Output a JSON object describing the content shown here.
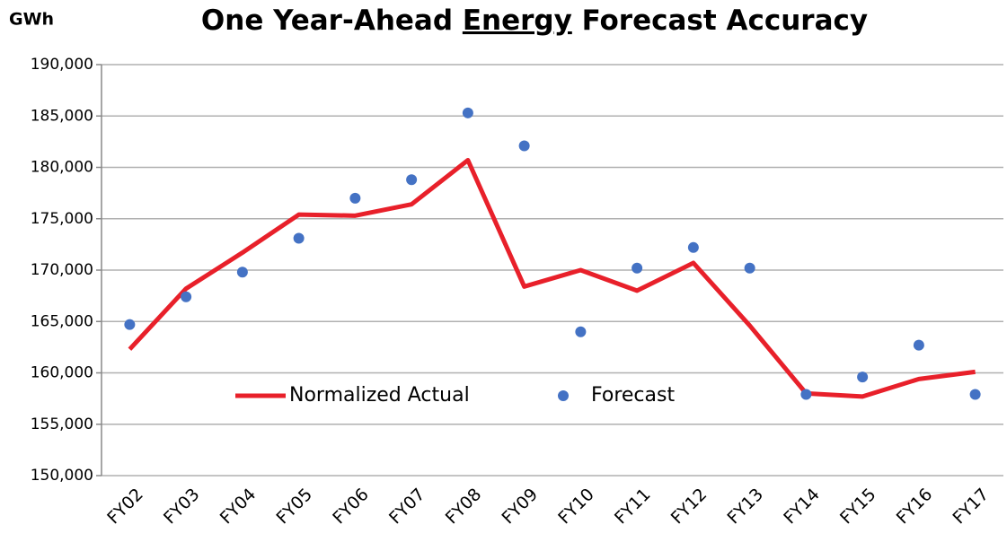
{
  "chart_data": {
    "type": "line",
    "title": [
      "One Year-Ahead",
      "Energy",
      "Forecast Accuracy"
    ],
    "y_label": "GWh",
    "categories": [
      "FY02",
      "FY03",
      "FY04",
      "FY05",
      "FY06",
      "FY07",
      "FY08",
      "FY09",
      "FY10",
      "FY11",
      "FY12",
      "FY13",
      "FY14",
      "FY15",
      "FY16",
      "FY17"
    ],
    "series": [
      {
        "name": "Normalized Actual",
        "color": "#e8202a",
        "style": "line",
        "values": [
          162300,
          168200,
          171700,
          175400,
          175300,
          176400,
          180700,
          168400,
          170000,
          168000,
          170700,
          164600,
          158000,
          157700,
          159400,
          160100
        ]
      },
      {
        "name": "Forecast",
        "color": "#4472c4",
        "style": "markers",
        "values": [
          164700,
          167400,
          169800,
          173100,
          177000,
          178800,
          185300,
          182100,
          164000,
          170200,
          172200,
          170200,
          157900,
          159600,
          162700,
          157900
        ]
      }
    ],
    "ylim": [
      150000,
      190000
    ],
    "yticks": [
      {
        "value": 150000,
        "label": "150,000"
      },
      {
        "value": 155000,
        "label": "155,000"
      },
      {
        "value": 160000,
        "label": "160,000"
      },
      {
        "value": 165000,
        "label": "165,000"
      },
      {
        "value": 170000,
        "label": "170,000"
      },
      {
        "value": 175000,
        "label": "175,000"
      },
      {
        "value": 180000,
        "label": "180,000"
      },
      {
        "value": 185000,
        "label": "185,000"
      },
      {
        "value": 190000,
        "label": "190,000"
      }
    ],
    "grid": true
  }
}
